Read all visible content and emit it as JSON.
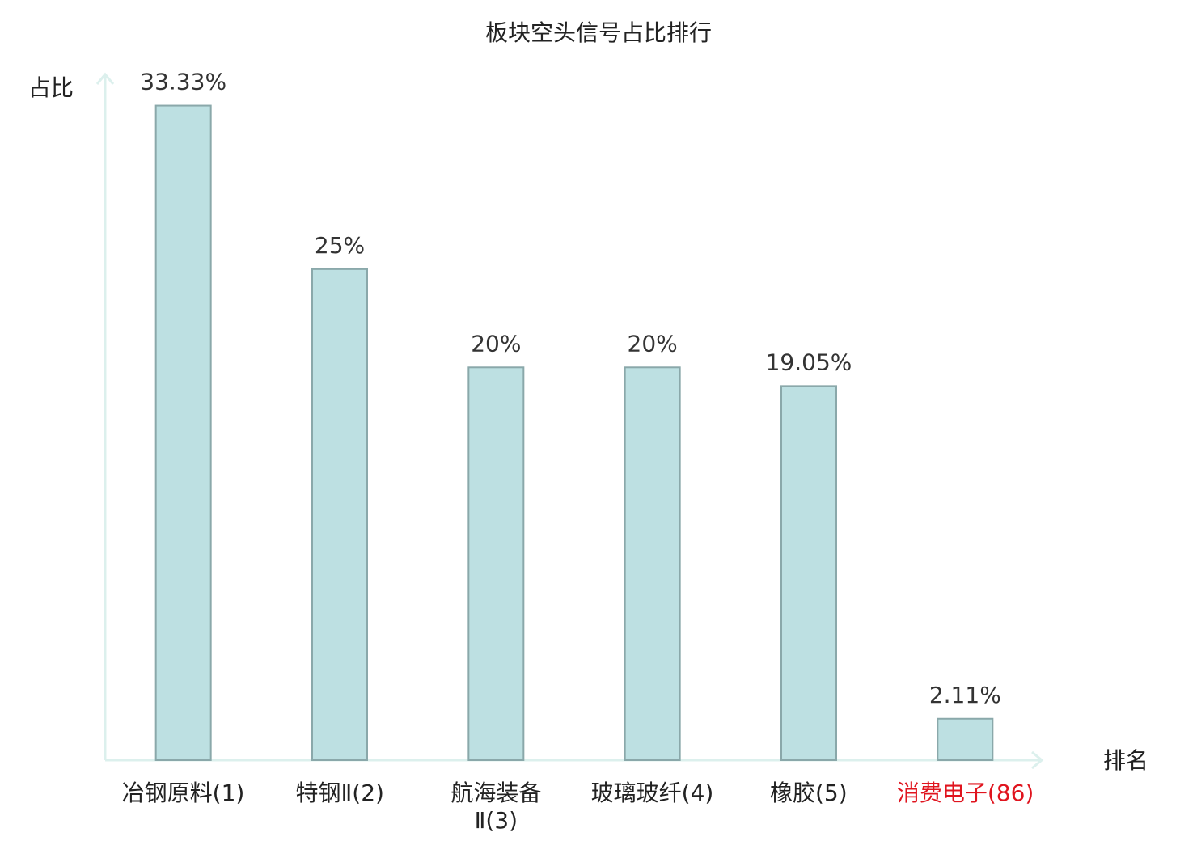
{
  "chart_data": {
    "type": "bar",
    "title": "板块空头信号占比排行",
    "y_label": "占比",
    "x_label": "排名",
    "categories": [
      "冶钢原料(1)",
      "特钢Ⅱ(2)",
      "航海装备Ⅱ(3)",
      "玻璃玻纤(4)",
      "橡胶(5)",
      "消费电子(86)"
    ],
    "category_colors": [
      "#222222",
      "#222222",
      "#222222",
      "#222222",
      "#222222",
      "#e0141e"
    ],
    "values": [
      33.33,
      25,
      20,
      20,
      19.05,
      2.11
    ],
    "value_labels": [
      "33.33%",
      "25%",
      "20%",
      "20%",
      "19.05%",
      "2.11%"
    ],
    "color": "#bde0e2",
    "edge_color": "#8aa8aa",
    "ylim": [
      0,
      35
    ]
  }
}
